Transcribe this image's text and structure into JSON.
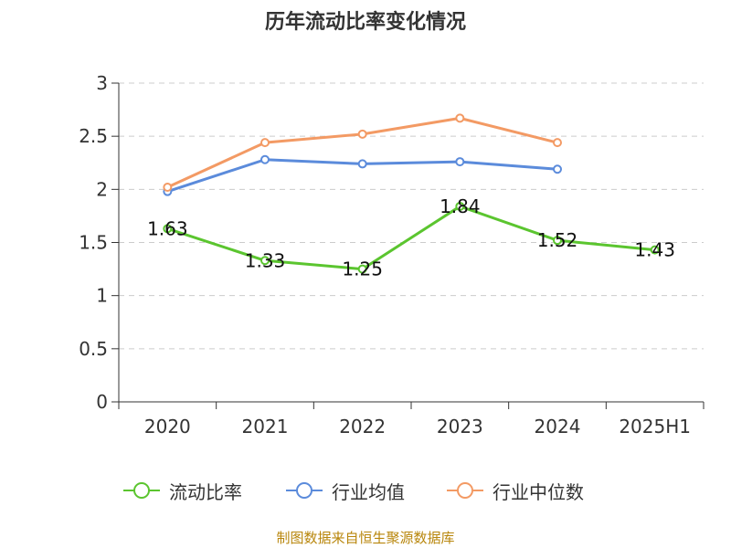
{
  "title": "历年流动比率变化情况",
  "source": "制图数据来自恒生聚源数据库",
  "chart_data": {
    "type": "line",
    "categories": [
      "2020",
      "2021",
      "2022",
      "2023",
      "2024",
      "2025H1"
    ],
    "ylim": [
      0,
      3
    ],
    "yticks": [
      "0",
      "0.5",
      "1",
      "1.5",
      "2",
      "2.5",
      "3"
    ],
    "grid": true,
    "legend_position": "bottom",
    "series": [
      {
        "name": "流动比率",
        "color": "#5bc52f",
        "values": [
          1.63,
          1.33,
          1.25,
          1.84,
          1.52,
          1.43
        ],
        "labels": [
          "1.63",
          "1.33",
          "1.25",
          "1.84",
          "1.52",
          "1.43"
        ]
      },
      {
        "name": "行业均值",
        "color": "#5b8bdb",
        "values": [
          1.98,
          2.28,
          2.24,
          2.26,
          2.19,
          null
        ]
      },
      {
        "name": "行业中位数",
        "color": "#f39a64",
        "values": [
          2.02,
          2.44,
          2.52,
          2.67,
          2.44,
          null
        ]
      }
    ]
  }
}
